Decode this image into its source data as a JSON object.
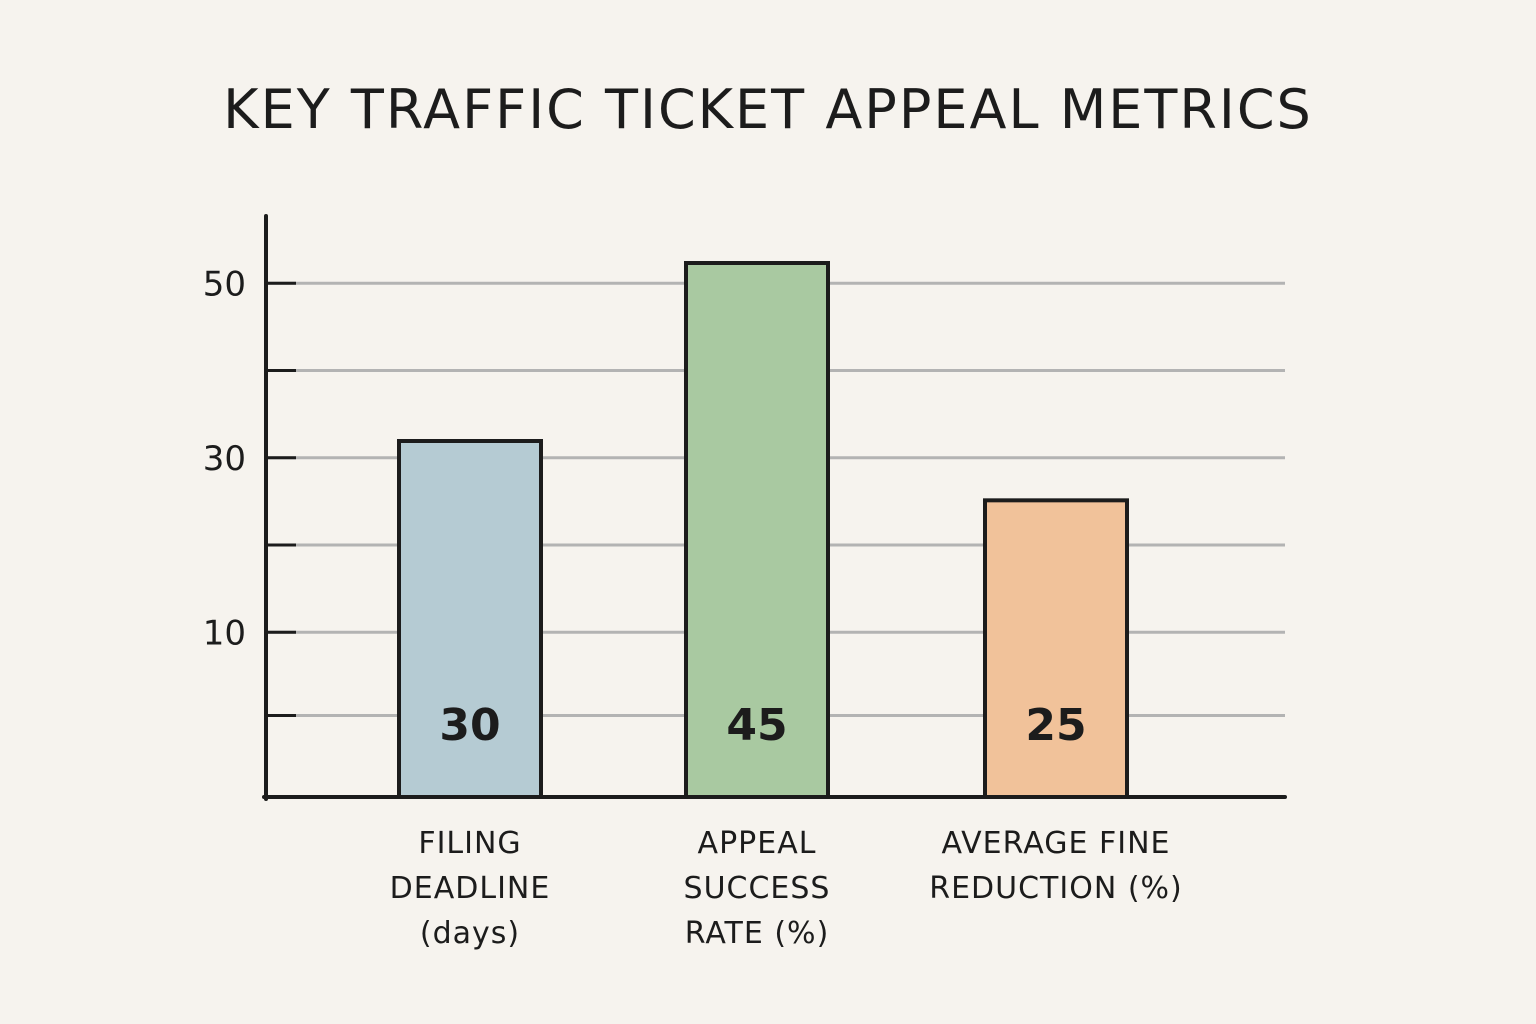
{
  "chart_data": {
    "type": "bar",
    "title": "KEY TRAFFIC TICKET APPEAL METRICS",
    "categories": [
      [
        "FILING",
        "DEADLINE",
        "(days)"
      ],
      [
        "APPEAL",
        "SUCCESS",
        "RATE (%)"
      ],
      [
        "AVERAGE FINE",
        "REDUCTION (%)"
      ]
    ],
    "values": [
      30,
      45,
      25
    ],
    "data_labels": [
      "30",
      "45",
      "25"
    ],
    "bar_colors": [
      "#b5cbd3",
      "#a9c9a1",
      "#f1c29a"
    ],
    "y_tick_labels": [
      {
        "value": 10,
        "label": "10"
      },
      {
        "value": 30,
        "label": "30"
      },
      {
        "value": 50,
        "label": "50"
      }
    ],
    "grid": true,
    "xlabel": "",
    "ylabel": ""
  }
}
